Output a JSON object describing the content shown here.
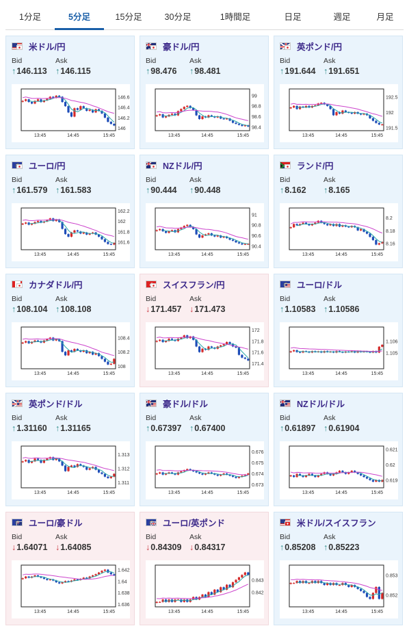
{
  "tabs": [
    {
      "label": "1分足",
      "active": false
    },
    {
      "label": "5分足",
      "active": true
    },
    {
      "label": "15分足",
      "active": false
    },
    {
      "label": "30分足",
      "active": false
    },
    {
      "label": "1時間足",
      "active": false
    },
    {
      "label": "日足",
      "active": false
    },
    {
      "label": "週足",
      "active": false
    },
    {
      "label": "月足",
      "active": false
    }
  ],
  "labels": {
    "bid": "Bid",
    "ask": "Ask"
  },
  "colors": {
    "candle_up": "#d42a2a",
    "candle_down": "#1e4db8",
    "ma_short": "#2aa8a8",
    "ma_long": "#cc44cc",
    "card_up_bg": "#eaf4fc",
    "card_down_bg": "#fbeef0"
  },
  "cards": [
    {
      "pair": "米ドル/円",
      "flag": "us-jp",
      "bid_arrow": "↑",
      "bid": "146.113",
      "ask_arrow": "↑",
      "ask": "146.115",
      "dir": "up",
      "chart_data": {
        "type": "candlestick",
        "x_ticks": [
          "13:45",
          "14:45",
          "15:45"
        ],
        "y_ticks": [
          "146.6",
          "146.4",
          "146.2",
          "146"
        ],
        "ylim": [
          145.95,
          146.75
        ],
        "close": [
          146.52,
          146.55,
          146.5,
          146.47,
          146.52,
          146.55,
          146.5,
          146.53,
          146.56,
          146.6,
          146.58,
          146.62,
          146.6,
          146.5,
          146.42,
          146.3,
          146.22,
          146.38,
          146.35,
          146.42,
          146.38,
          146.33,
          146.35,
          146.3,
          146.36,
          146.33,
          146.28,
          146.2,
          146.12,
          146.08,
          146.05
        ]
      }
    },
    {
      "pair": "豪ドル/円",
      "flag": "au-jp",
      "bid_arrow": "↑",
      "bid": "98.476",
      "ask_arrow": "↑",
      "ask": "98.481",
      "dir": "up",
      "chart_data": {
        "type": "candlestick",
        "x_ticks": [
          "13:45",
          "14:45",
          "15:45"
        ],
        "y_ticks": [
          "99",
          "98.8",
          "98.6",
          "98.4"
        ],
        "ylim": [
          98.33,
          99.12
        ],
        "close": [
          98.62,
          98.64,
          98.58,
          98.6,
          98.63,
          98.65,
          98.62,
          98.7,
          98.74,
          98.78,
          98.8,
          98.76,
          98.72,
          98.62,
          98.55,
          98.6,
          98.58,
          98.62,
          98.6,
          98.58,
          98.6,
          98.56,
          98.55,
          98.56,
          98.52,
          98.48,
          98.46,
          98.44,
          98.42,
          98.43,
          98.41
        ]
      }
    },
    {
      "pair": "英ポンド/円",
      "flag": "gb-jp",
      "bid_arrow": "↑",
      "bid": "191.644",
      "ask_arrow": "↑",
      "ask": "191.651",
      "dir": "up",
      "chart_data": {
        "type": "candlestick",
        "x_ticks": [
          "13:45",
          "14:45",
          "15:45"
        ],
        "y_ticks": [
          "192.5",
          "192",
          "191.5"
        ],
        "ylim": [
          191.4,
          192.75
        ],
        "close": [
          192.15,
          192.2,
          192.1,
          192.18,
          192.15,
          192.2,
          192.15,
          192.2,
          192.22,
          192.28,
          192.3,
          192.25,
          192.2,
          192.1,
          191.9,
          192.0,
          191.95,
          192.05,
          192.0,
          191.98,
          191.95,
          192.0,
          191.95,
          191.92,
          191.95,
          191.9,
          191.8,
          191.72,
          191.65,
          191.6,
          191.6
        ]
      }
    },
    {
      "pair": "ユーロ/円",
      "flag": "eu-jp",
      "bid_arrow": "↑",
      "bid": "161.579",
      "ask_arrow": "↑",
      "ask": "161.583",
      "dir": "up",
      "chart_data": {
        "type": "candlestick",
        "x_ticks": [
          "13:45",
          "14:45",
          "15:45"
        ],
        "y_ticks": [
          "162.2",
          "162",
          "161.8",
          "161.6"
        ],
        "ylim": [
          161.45,
          162.25
        ],
        "close": [
          161.95,
          161.97,
          161.93,
          161.95,
          161.98,
          162.0,
          161.97,
          161.99,
          162.02,
          162.05,
          162.0,
          162.03,
          161.98,
          161.85,
          161.75,
          161.7,
          161.78,
          161.82,
          161.8,
          161.76,
          161.78,
          161.74,
          161.76,
          161.78,
          161.74,
          161.7,
          161.65,
          161.6,
          161.56,
          161.55,
          161.58
        ]
      }
    },
    {
      "pair": "NZドル/円",
      "flag": "nz-jp",
      "bid_arrow": "↑",
      "bid": "90.444",
      "ask_arrow": "↑",
      "ask": "90.448",
      "dir": "up",
      "chart_data": {
        "type": "candlestick",
        "x_ticks": [
          "13:45",
          "14:45",
          "15:45"
        ],
        "y_ticks": [
          "91",
          "90.8",
          "90.6",
          "90.4"
        ],
        "ylim": [
          90.33,
          91.12
        ],
        "close": [
          90.7,
          90.72,
          90.68,
          90.65,
          90.68,
          90.7,
          90.66,
          90.72,
          90.75,
          90.78,
          90.8,
          90.76,
          90.72,
          90.62,
          90.56,
          90.6,
          90.62,
          90.64,
          90.6,
          90.58,
          90.6,
          90.56,
          90.58,
          90.55,
          90.52,
          90.5,
          90.47,
          90.45,
          90.43,
          90.44,
          90.44
        ]
      }
    },
    {
      "pair": "ランド/円",
      "flag": "za-jp",
      "bid_arrow": "↑",
      "bid": "8.162",
      "ask_arrow": "↑",
      "ask": "8.165",
      "dir": "up",
      "chart_data": {
        "type": "candlestick",
        "x_ticks": [
          "13:45",
          "14:45",
          "15:45"
        ],
        "y_ticks": [
          "8.2",
          "8.18",
          "8.16"
        ],
        "ylim": [
          8.15,
          8.215
        ],
        "close": [
          8.185,
          8.19,
          8.188,
          8.19,
          8.192,
          8.19,
          8.188,
          8.19,
          8.192,
          8.195,
          8.192,
          8.19,
          8.188,
          8.19,
          8.187,
          8.19,
          8.186,
          8.188,
          8.186,
          8.185,
          8.187,
          8.185,
          8.18,
          8.182,
          8.178,
          8.175,
          8.17,
          8.165,
          8.158,
          8.16,
          8.162
        ]
      }
    },
    {
      "pair": "カナダドル/円",
      "flag": "ca-jp",
      "bid_arrow": "↑",
      "bid": "108.104",
      "ask_arrow": "↑",
      "ask": "108.108",
      "dir": "up",
      "chart_data": {
        "type": "candlestick",
        "x_ticks": [
          "13:45",
          "14:45",
          "15:45"
        ],
        "y_ticks": [
          "108.4",
          "108.2",
          "108"
        ],
        "ylim": [
          107.96,
          108.55
        ],
        "close": [
          108.33,
          108.35,
          108.32,
          108.34,
          108.36,
          108.35,
          108.33,
          108.36,
          108.38,
          108.4,
          108.36,
          108.38,
          108.35,
          108.2,
          108.15,
          108.22,
          108.2,
          108.24,
          108.22,
          108.2,
          108.22,
          108.18,
          108.2,
          108.16,
          108.18,
          108.14,
          108.1,
          108.06,
          108.02,
          108.03,
          108.1
        ]
      }
    },
    {
      "pair": "スイスフラン/円",
      "flag": "ch-jp",
      "bid_arrow": "↓",
      "bid": "171.457",
      "ask_arrow": "↓",
      "ask": "171.473",
      "dir": "down",
      "chart_data": {
        "type": "candlestick",
        "x_ticks": [
          "13:45",
          "14:45",
          "15:45"
        ],
        "y_ticks": [
          "172",
          "171.8",
          "171.6",
          "171.4"
        ],
        "ylim": [
          171.3,
          172.05
        ],
        "close": [
          171.8,
          171.82,
          171.78,
          171.8,
          171.84,
          171.82,
          171.8,
          171.84,
          171.86,
          171.9,
          171.85,
          171.88,
          171.82,
          171.7,
          171.6,
          171.66,
          171.64,
          171.7,
          171.68,
          171.66,
          171.7,
          171.72,
          171.74,
          171.78,
          171.75,
          171.7,
          171.68,
          171.55,
          171.5,
          171.48,
          171.45
        ]
      }
    },
    {
      "pair": "ユーロ/ドル",
      "flag": "eu-us",
      "bid_arrow": "↑",
      "bid": "1.10583",
      "ask_arrow": "↑",
      "ask": "1.10586",
      "dir": "up",
      "chart_data": {
        "type": "candlestick",
        "x_ticks": [
          "13:45",
          "14:45",
          "15:45"
        ],
        "y_ticks": [
          "1.106",
          "1.1055"
        ],
        "ylim": [
          1.1048,
          1.1066
        ],
        "close": [
          1.10555,
          1.1056,
          1.10552,
          1.1055,
          1.10556,
          1.10554,
          1.1055,
          1.10556,
          1.10552,
          1.10555,
          1.1055,
          1.10556,
          1.10552,
          1.10554,
          1.1055,
          1.10556,
          1.10553,
          1.1055,
          1.10554,
          1.10552,
          1.10556,
          1.1055,
          1.10556,
          1.10552,
          1.10555,
          1.10553,
          1.1055,
          1.10556,
          1.1055,
          1.10575,
          1.10583
        ]
      }
    },
    {
      "pair": "英ポンド/ドル",
      "flag": "gb-us",
      "bid_arrow": "↑",
      "bid": "1.31160",
      "ask_arrow": "↑",
      "ask": "1.31165",
      "dir": "up",
      "chart_data": {
        "type": "candlestick",
        "x_ticks": [
          "13:45",
          "14:45",
          "15:45"
        ],
        "y_ticks": [
          "1.313",
          "1.312",
          "1.311"
        ],
        "ylim": [
          1.3106,
          1.3136
        ],
        "close": [
          1.3125,
          1.3126,
          1.3124,
          1.3125,
          1.3127,
          1.3126,
          1.3124,
          1.3126,
          1.3127,
          1.3128,
          1.3126,
          1.3127,
          1.3125,
          1.3122,
          1.3118,
          1.3121,
          1.3122,
          1.3121,
          1.3123,
          1.3122,
          1.3121,
          1.3119,
          1.312,
          1.3121,
          1.3119,
          1.3117,
          1.3116,
          1.3114,
          1.3113,
          1.3114,
          1.3116
        ]
      }
    },
    {
      "pair": "豪ドル/ドル",
      "flag": "au-us",
      "bid_arrow": "↑",
      "bid": "0.67397",
      "ask_arrow": "↑",
      "ask": "0.67400",
      "dir": "up",
      "chart_data": {
        "type": "candlestick",
        "x_ticks": [
          "13:45",
          "14:45",
          "15:45"
        ],
        "y_ticks": [
          "0.676",
          "0.675",
          "0.674",
          "0.673"
        ],
        "ylim": [
          0.6727,
          0.6765
        ],
        "close": [
          0.674,
          0.6741,
          0.6739,
          0.674,
          0.6741,
          0.674,
          0.6739,
          0.6741,
          0.6742,
          0.6743,
          0.6744,
          0.6743,
          0.6742,
          0.6741,
          0.674,
          0.6739,
          0.674,
          0.6741,
          0.674,
          0.6739,
          0.6738,
          0.6739,
          0.674,
          0.6739,
          0.6738,
          0.6737,
          0.6736,
          0.6737,
          0.6738,
          0.6739,
          0.674
        ]
      }
    },
    {
      "pair": "NZドル/ドル",
      "flag": "nz-us",
      "bid_arrow": "↑",
      "bid": "0.61897",
      "ask_arrow": "↑",
      "ask": "0.61904",
      "dir": "up",
      "chart_data": {
        "type": "candlestick",
        "x_ticks": [
          "13:45",
          "14:45",
          "15:45"
        ],
        "y_ticks": [
          "0.621",
          "0.62",
          "0.619"
        ],
        "ylim": [
          0.6185,
          0.6212
        ],
        "close": [
          0.6193,
          0.6192,
          0.6194,
          0.6193,
          0.6192,
          0.6193,
          0.6194,
          0.6193,
          0.6192,
          0.6193,
          0.6194,
          0.6195,
          0.6194,
          0.6193,
          0.6194,
          0.6195,
          0.6196,
          0.6195,
          0.6194,
          0.6195,
          0.6196,
          0.6195,
          0.6194,
          0.6193,
          0.6192,
          0.6191,
          0.619,
          0.6189,
          0.619,
          0.6189,
          0.619
        ]
      }
    },
    {
      "pair": "ユーロ/豪ドル",
      "flag": "eu-au",
      "bid_arrow": "↓",
      "bid": "1.64071",
      "ask_arrow": "↓",
      "ask": "1.64085",
      "dir": "down",
      "chart_data": {
        "type": "candlestick",
        "x_ticks": [
          "13:45",
          "14:45",
          "15:45"
        ],
        "y_ticks": [
          "1.642",
          "1.64",
          "1.638",
          "1.636"
        ],
        "ylim": [
          1.6355,
          1.6428
        ],
        "close": [
          1.6405,
          1.6408,
          1.6406,
          1.6408,
          1.641,
          1.6408,
          1.6406,
          1.6404,
          1.6402,
          1.6403,
          1.6401,
          1.6398,
          1.6396,
          1.6398,
          1.64,
          1.6399,
          1.6401,
          1.6403,
          1.6402,
          1.6404,
          1.6406,
          1.6405,
          1.6408,
          1.641,
          1.6412,
          1.6415,
          1.6418,
          1.642,
          1.6415,
          1.6412,
          1.641
        ]
      }
    },
    {
      "pair": "ユーロ/英ポンド",
      "flag": "eu-gb",
      "bid_arrow": "↓",
      "bid": "0.84309",
      "ask_arrow": "↓",
      "ask": "0.84317",
      "dir": "down",
      "chart_data": {
        "type": "candlestick",
        "x_ticks": [
          "13:45",
          "14:45",
          "15:45"
        ],
        "y_ticks": [
          "0.843",
          "0.8425"
        ],
        "ylim": [
          0.8419,
          0.8436
        ],
        "close": [
          0.8421,
          0.8421,
          0.8422,
          0.8421,
          0.8422,
          0.8421,
          0.8422,
          0.8422,
          0.8421,
          0.8422,
          0.8421,
          0.8422,
          0.8423,
          0.8422,
          0.8423,
          0.8424,
          0.8423,
          0.8425,
          0.8424,
          0.8426,
          0.8425,
          0.8427,
          0.8426,
          0.8428,
          0.8427,
          0.8429,
          0.843,
          0.8431,
          0.8432,
          0.8433,
          0.8432
        ]
      }
    },
    {
      "pair": "米ドル/スイスフラン",
      "flag": "us-ch",
      "bid_arrow": "↑",
      "bid": "0.85208",
      "ask_arrow": "↑",
      "ask": "0.85223",
      "dir": "up",
      "chart_data": {
        "type": "candlestick",
        "x_ticks": [
          "13:45",
          "14:45",
          "15:45"
        ],
        "y_ticks": [
          "0.853",
          "0.852"
        ],
        "ylim": [
          0.8514,
          0.8535
        ],
        "close": [
          0.8526,
          0.8526,
          0.8527,
          0.8526,
          0.8527,
          0.8526,
          0.8526,
          0.8527,
          0.8526,
          0.8527,
          0.8526,
          0.8525,
          0.8526,
          0.8525,
          0.8526,
          0.8525,
          0.8525,
          0.8526,
          0.8525,
          0.8524,
          0.8525,
          0.8524,
          0.8523,
          0.8522,
          0.8521,
          0.8519,
          0.8518,
          0.8521,
          0.8524,
          0.8518,
          0.8521
        ]
      }
    }
  ]
}
